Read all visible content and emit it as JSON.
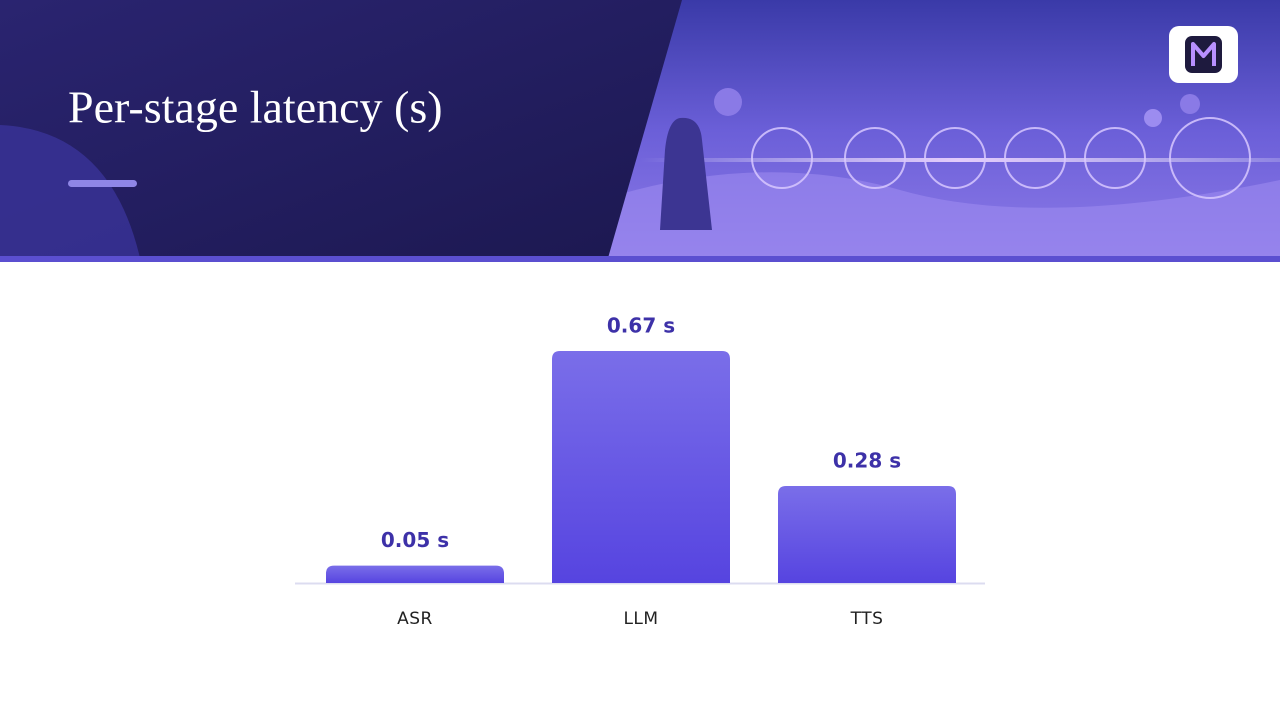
{
  "chart_data": {
    "type": "bar",
    "title": "Per-stage latency (s)",
    "categories": [
      "ASR",
      "LLM",
      "TTS"
    ],
    "values": [
      0.05,
      0.67,
      0.28
    ],
    "value_labels": [
      "0.05 s",
      "0.67 s",
      "0.28 s"
    ],
    "color": "#6452e6"
  }
}
